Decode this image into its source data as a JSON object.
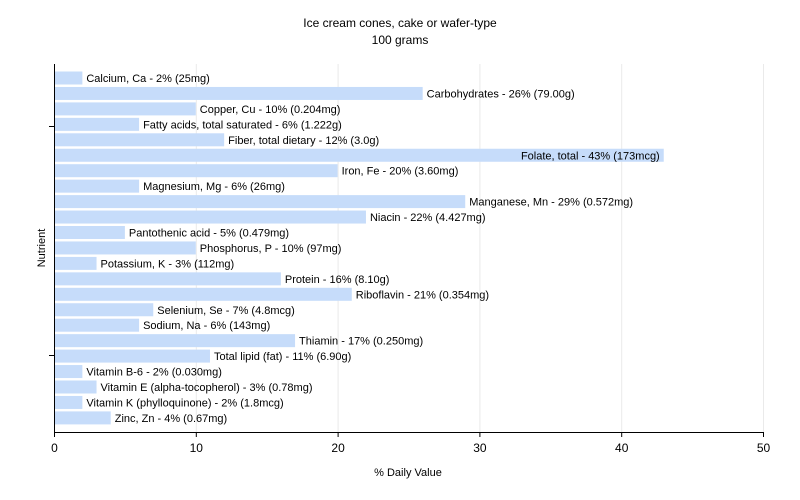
{
  "chart_data": {
    "type": "bar",
    "orientation": "horizontal",
    "title": "Ice cream cones, cake or wafer-type",
    "subtitle": "100 grams",
    "xlabel": "% Daily Value",
    "ylabel": "Nutrient",
    "xlim": [
      0,
      50
    ],
    "xticks": [
      0,
      10,
      20,
      30,
      40,
      50
    ],
    "grid": true,
    "bar_color": "#c6dcfa",
    "categories": [
      "Calcium, Ca",
      "Carbohydrates",
      "Copper, Cu",
      "Fatty acids, total saturated",
      "Fiber, total dietary",
      "Folate, total",
      "Iron, Fe",
      "Magnesium, Mg",
      "Manganese, Mn",
      "Niacin",
      "Pantothenic acid",
      "Phosphorus, P",
      "Potassium, K",
      "Protein",
      "Riboflavin",
      "Selenium, Se",
      "Sodium, Na",
      "Thiamin",
      "Total lipid (fat)",
      "Vitamin B-6",
      "Vitamin E (alpha-tocopherol)",
      "Vitamin K (phylloquinone)",
      "Zinc, Zn"
    ],
    "values": [
      2,
      26,
      10,
      6,
      12,
      43,
      20,
      6,
      29,
      22,
      5,
      10,
      3,
      16,
      21,
      7,
      6,
      17,
      11,
      2,
      3,
      2,
      4
    ],
    "labels": [
      "Calcium, Ca - 2% (25mg)",
      "Carbohydrates - 26% (79.00g)",
      "Copper, Cu - 10% (0.204mg)",
      "Fatty acids, total saturated - 6% (1.222g)",
      "Fiber, total dietary - 12% (3.0g)",
      "Folate, total - 43% (173mcg)",
      "Iron, Fe - 20% (3.60mg)",
      "Magnesium, Mg - 6% (26mg)",
      "Manganese, Mn - 29% (0.572mg)",
      "Niacin - 22% (4.427mg)",
      "Pantothenic acid - 5% (0.479mg)",
      "Phosphorus, P - 10% (97mg)",
      "Potassium, K - 3% (112mg)",
      "Protein - 16% (8.10g)",
      "Riboflavin - 21% (0.354mg)",
      "Selenium, Se - 7% (4.8mcg)",
      "Sodium, Na - 6% (143mg)",
      "Thiamin - 17% (0.250mg)",
      "Total lipid (fat) - 11% (6.90g)",
      "Vitamin B-6 - 2% (0.030mg)",
      "Vitamin E (alpha-tocopherol) - 3% (0.78mg)",
      "Vitamin K (phylloquinone) - 2% (1.8mcg)",
      "Zinc, Zn - 4% (0.67mg)"
    ]
  }
}
